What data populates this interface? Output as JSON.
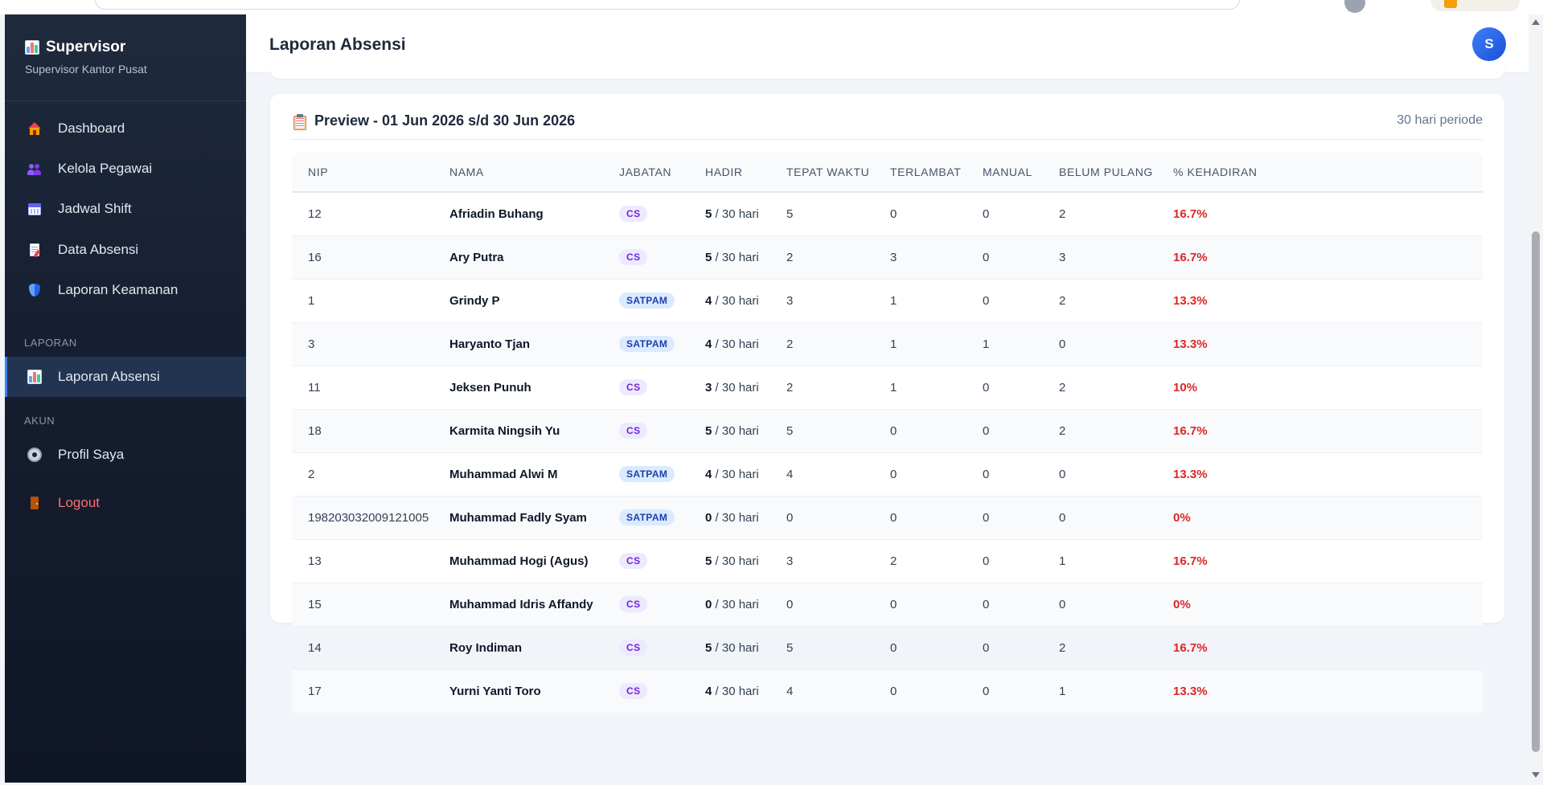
{
  "sidebar": {
    "brand_title": "Supervisor",
    "brand_subtitle": "Supervisor Kantor Pusat",
    "items": [
      {
        "label": "Dashboard",
        "icon": "house-icon"
      },
      {
        "label": "Kelola Pegawai",
        "icon": "people-icon"
      },
      {
        "label": "Jadwal Shift",
        "icon": "calendar-icon"
      },
      {
        "label": "Data Absensi",
        "icon": "document-icon"
      },
      {
        "label": "Laporan Keamanan",
        "icon": "shield-icon"
      }
    ],
    "section_laporan": "LAPORAN",
    "laporan_absensi": "Laporan Absensi",
    "section_akun": "AKUN",
    "profil": "Profil Saya",
    "logout": "Logout"
  },
  "header": {
    "title": "Laporan Absensi",
    "avatar_initial": "S"
  },
  "card": {
    "title": "Preview - 01 Jun 2026 s/d 30 Jun 2026",
    "meta": "30 hari periode"
  },
  "table": {
    "columns": [
      "NIP",
      "NAMA",
      "JABATAN",
      "HADIR",
      "TEPAT WAKTU",
      "TERLAMBAT",
      "MANUAL",
      "BELUM PULANG",
      "% KEHADIRAN"
    ],
    "hadir_suffix": " / 30 hari",
    "rows": [
      {
        "nip": "12",
        "nama": "Afriadin Buhang",
        "jabatan": "CS",
        "hadir": "5",
        "tepat": "5",
        "terlambat": "0",
        "manual": "0",
        "belum": "2",
        "pct": "16.7%"
      },
      {
        "nip": "16",
        "nama": "Ary Putra",
        "jabatan": "CS",
        "hadir": "5",
        "tepat": "2",
        "terlambat": "3",
        "manual": "0",
        "belum": "3",
        "pct": "16.7%"
      },
      {
        "nip": "1",
        "nama": "Grindy P",
        "jabatan": "SATPAM",
        "hadir": "4",
        "tepat": "3",
        "terlambat": "1",
        "manual": "0",
        "belum": "2",
        "pct": "13.3%"
      },
      {
        "nip": "3",
        "nama": "Haryanto Tjan",
        "jabatan": "SATPAM",
        "hadir": "4",
        "tepat": "2",
        "terlambat": "1",
        "manual": "1",
        "belum": "0",
        "pct": "13.3%"
      },
      {
        "nip": "11",
        "nama": "Jeksen Punuh",
        "jabatan": "CS",
        "hadir": "3",
        "tepat": "2",
        "terlambat": "1",
        "manual": "0",
        "belum": "2",
        "pct": "10%"
      },
      {
        "nip": "18",
        "nama": "Karmita Ningsih Yu",
        "jabatan": "CS",
        "hadir": "5",
        "tepat": "5",
        "terlambat": "0",
        "manual": "0",
        "belum": "2",
        "pct": "16.7%"
      },
      {
        "nip": "2",
        "nama": "Muhammad Alwi M",
        "jabatan": "SATPAM",
        "hadir": "4",
        "tepat": "4",
        "terlambat": "0",
        "manual": "0",
        "belum": "0",
        "pct": "13.3%"
      },
      {
        "nip": "198203032009121005",
        "nama": "Muhammad Fadly Syam",
        "jabatan": "SATPAM",
        "hadir": "0",
        "tepat": "0",
        "terlambat": "0",
        "manual": "0",
        "belum": "0",
        "pct": "0%"
      },
      {
        "nip": "13",
        "nama": "Muhammad Hogi (Agus)",
        "jabatan": "CS",
        "hadir": "5",
        "tepat": "3",
        "terlambat": "2",
        "manual": "0",
        "belum": "1",
        "pct": "16.7%"
      },
      {
        "nip": "15",
        "nama": "Muhammad Idris Affandy",
        "jabatan": "CS",
        "hadir": "0",
        "tepat": "0",
        "terlambat": "0",
        "manual": "0",
        "belum": "0",
        "pct": "0%"
      },
      {
        "nip": "14",
        "nama": "Roy Indiman",
        "jabatan": "CS",
        "hadir": "5",
        "tepat": "5",
        "terlambat": "0",
        "manual": "0",
        "belum": "2",
        "pct": "16.7%"
      },
      {
        "nip": "17",
        "nama": "Yurni Yanti Toro",
        "jabatan": "CS",
        "hadir": "4",
        "tepat": "4",
        "terlambat": "0",
        "manual": "0",
        "belum": "1",
        "pct": "13.3%"
      }
    ]
  },
  "colors": {
    "sidebar_bg": "#1b2538",
    "accent": "#3b82f6",
    "danger": "#dc2626",
    "badge_cs": "#ede9fe",
    "badge_satpam": "#dbeafe"
  }
}
